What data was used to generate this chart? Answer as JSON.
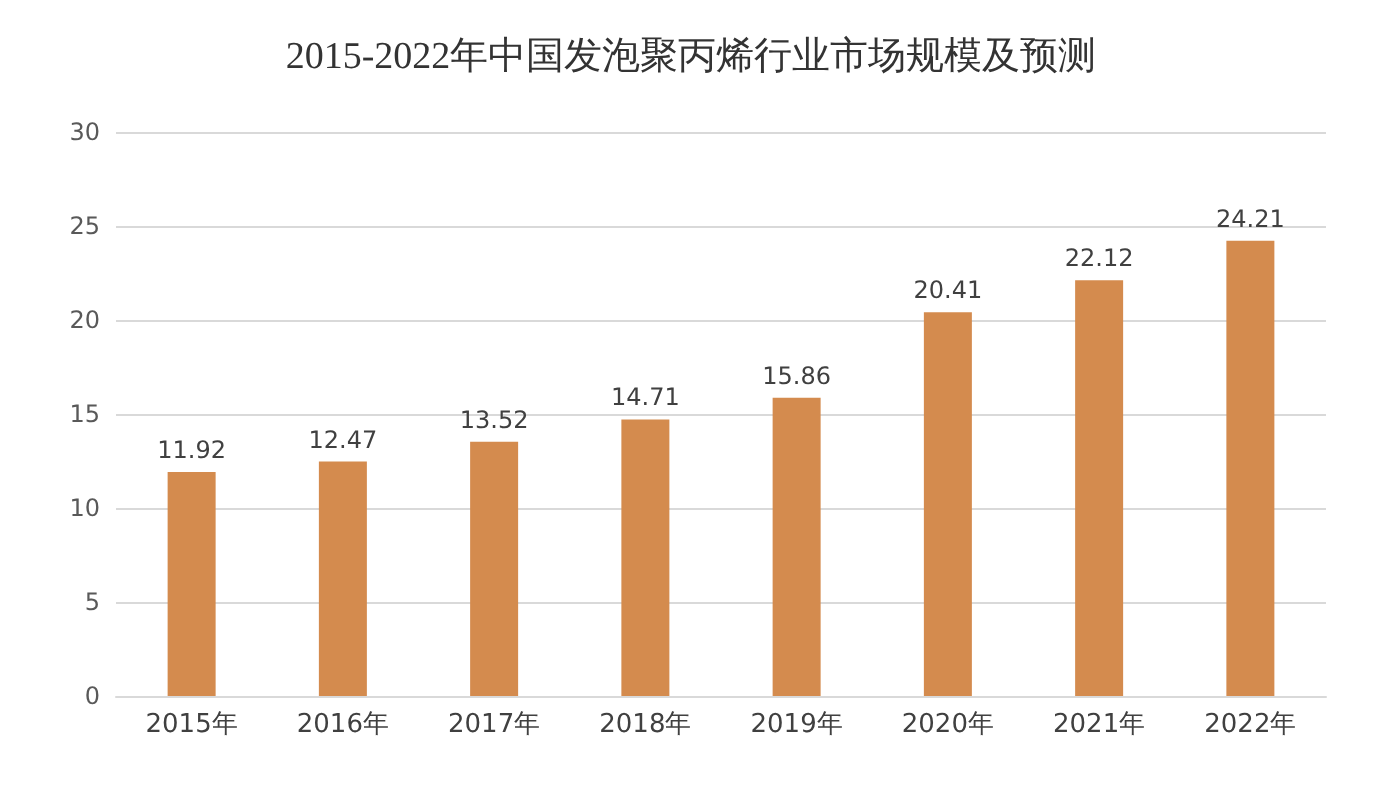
{
  "chart_data": {
    "type": "bar",
    "title": "2015-2022年中国发泡聚丙烯行业市场规模及预测",
    "categories": [
      "2015年",
      "2016年",
      "2017年",
      "2018年",
      "2019年",
      "2020年",
      "2021年",
      "2022年"
    ],
    "values": [
      11.92,
      12.47,
      13.52,
      14.71,
      15.86,
      20.41,
      22.12,
      24.21
    ],
    "color": "#d48b4e",
    "ylim": [
      0,
      30
    ],
    "yticks": [
      0,
      5,
      10,
      15,
      20,
      25,
      30
    ],
    "grid": "y",
    "data_labels": true
  }
}
